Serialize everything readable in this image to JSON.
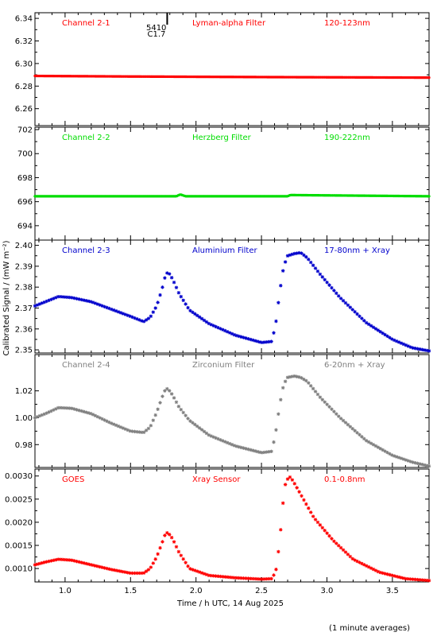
{
  "figure": {
    "ylabel": "Calibrated Signal / (mW m⁻²)",
    "xlabel": "Time / h UTC, 14 Aug 2025",
    "footnote": "(1 minute averages)",
    "flare_marker": {
      "time": 1.78,
      "line1": "5410",
      "line2": "C1.7"
    }
  },
  "chart_data": [
    {
      "type": "scatter",
      "channel": "Channel 2-1",
      "filter": "Lyman-alpha Filter",
      "band": "120-123nm",
      "color": "#ff0000",
      "xlim": [
        0.77,
        3.78
      ],
      "ylim": [
        6.245,
        6.345
      ],
      "yticks": [
        6.26,
        6.28,
        6.3,
        6.32,
        6.34
      ],
      "ytick_labels": [
        "6.26",
        "6.28",
        "6.30",
        "6.32",
        "6.34"
      ],
      "x": [
        0.77,
        1.5,
        2.5,
        3.78
      ],
      "y": [
        6.289,
        6.2885,
        6.288,
        6.2875
      ]
    },
    {
      "type": "scatter",
      "channel": "Channel 2-2",
      "filter": "Herzberg Filter",
      "band": "190-222nm",
      "color": "#00dd00",
      "xlim": [
        0.77,
        3.78
      ],
      "ylim": [
        692.8,
        702.2
      ],
      "yticks": [
        694,
        696,
        698,
        700,
        702
      ],
      "ytick_labels": [
        "694",
        "696",
        "698",
        "700",
        "702"
      ],
      "x": [
        0.77,
        1.85,
        1.88,
        1.92,
        2.7,
        2.72,
        3.78
      ],
      "y": [
        696.45,
        696.45,
        696.6,
        696.45,
        696.45,
        696.55,
        696.45
      ]
    },
    {
      "type": "scatter",
      "channel": "Channel 2-3",
      "filter": "Aluminium Filter",
      "band": "17-80nm + Xray",
      "color": "#0000cc",
      "xlim": [
        0.77,
        3.78
      ],
      "ylim": [
        2.3485,
        2.4025
      ],
      "yticks": [
        2.35,
        2.36,
        2.37,
        2.38,
        2.39,
        2.4
      ],
      "ytick_labels": [
        "2.35",
        "2.36",
        "2.37",
        "2.38",
        "2.39",
        "2.40"
      ],
      "x": [
        0.77,
        0.85,
        0.95,
        1.05,
        1.2,
        1.35,
        1.5,
        1.6,
        1.65,
        1.7,
        1.74,
        1.77,
        1.79,
        1.82,
        1.87,
        1.95,
        2.1,
        2.3,
        2.5,
        2.58,
        2.61,
        2.64,
        2.67,
        2.7,
        2.75,
        2.8,
        2.85,
        2.95,
        3.1,
        3.3,
        3.5,
        3.65,
        3.78
      ],
      "y": [
        2.371,
        2.373,
        2.3755,
        2.375,
        2.373,
        2.3695,
        2.366,
        2.3635,
        2.3655,
        2.371,
        2.379,
        2.3865,
        2.387,
        2.384,
        2.377,
        2.369,
        2.3625,
        2.357,
        2.3535,
        2.354,
        2.363,
        2.378,
        2.39,
        2.395,
        2.396,
        2.3965,
        2.394,
        2.386,
        2.375,
        2.363,
        2.355,
        2.351,
        2.3495
      ]
    },
    {
      "type": "scatter",
      "channel": "Channel 2-4",
      "filter": "Zirconium Filter",
      "band": "6-20nm + Xray",
      "color": "#808080",
      "xlim": [
        0.77,
        3.78
      ],
      "ylim": [
        0.963,
        1.047
      ],
      "yticks": [
        0.98,
        1.0,
        1.02
      ],
      "ytick_labels": [
        "0.98",
        "1.00",
        "1.02"
      ],
      "x": [
        0.77,
        0.85,
        0.95,
        1.05,
        1.2,
        1.35,
        1.5,
        1.6,
        1.65,
        1.7,
        1.74,
        1.77,
        1.79,
        1.82,
        1.87,
        1.95,
        2.1,
        2.3,
        2.5,
        2.58,
        2.61,
        2.64,
        2.67,
        2.7,
        2.75,
        2.8,
        2.85,
        2.95,
        3.1,
        3.3,
        3.5,
        3.65,
        3.78
      ],
      "y": [
        1.0,
        1.003,
        1.0075,
        1.007,
        1.003,
        0.996,
        0.99,
        0.989,
        0.993,
        1.004,
        1.015,
        1.022,
        1.021,
        1.017,
        1.008,
        0.998,
        0.987,
        0.979,
        0.974,
        0.975,
        0.99,
        1.01,
        1.025,
        1.03,
        1.031,
        1.03,
        1.027,
        1.015,
        1.0,
        0.983,
        0.972,
        0.967,
        0.964
      ]
    },
    {
      "type": "scatter",
      "channel": "GOES",
      "filter": "Xray Sensor",
      "band": "0.1-0.8nm",
      "color": "#ff0000",
      "xlim": [
        0.77,
        3.78
      ],
      "ylim": [
        0.00071,
        0.00315
      ],
      "yticks": [
        0.001,
        0.0015,
        0.002,
        0.0025,
        0.003
      ],
      "ytick_labels": [
        "0.0010",
        "0.0015",
        "0.0020",
        "0.0025",
        "0.0030"
      ],
      "x": [
        0.77,
        0.85,
        0.95,
        1.05,
        1.2,
        1.35,
        1.5,
        1.6,
        1.65,
        1.7,
        1.74,
        1.77,
        1.79,
        1.82,
        1.87,
        1.95,
        2.1,
        2.3,
        2.5,
        2.58,
        2.61,
        2.64,
        2.66,
        2.68,
        2.71,
        2.74,
        2.8,
        2.9,
        3.05,
        3.2,
        3.4,
        3.6,
        3.78
      ],
      "y": [
        0.00108,
        0.00114,
        0.0012,
        0.00118,
        0.00108,
        0.00098,
        0.0009,
        0.0009,
        0.001,
        0.00125,
        0.00155,
        0.00178,
        0.00176,
        0.00165,
        0.00135,
        0.001,
        0.00085,
        0.0008,
        0.00077,
        0.00078,
        0.00095,
        0.0016,
        0.0023,
        0.0028,
        0.003,
        0.0029,
        0.0026,
        0.0021,
        0.0016,
        0.0012,
        0.00092,
        0.00078,
        0.00074
      ]
    }
  ],
  "xaxis": {
    "ticks": [
      1.0,
      1.5,
      2.0,
      2.5,
      3.0,
      3.5
    ],
    "tick_labels": [
      "1.0",
      "1.5",
      "2.0",
      "2.5",
      "3.0",
      "3.5"
    ],
    "minor_step": 0.1
  }
}
